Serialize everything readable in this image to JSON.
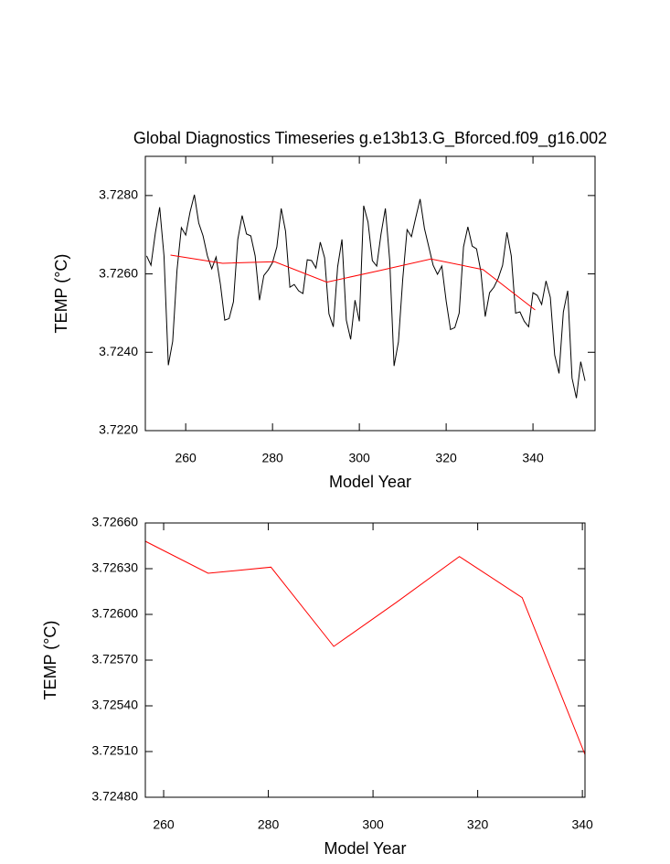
{
  "chart_data": [
    {
      "type": "line",
      "title": "Global Diagnostics Timeseries g.e13b13.G_Bforced.f09_g16.002",
      "ylabel": "TEMP (°C)",
      "xlabel": "Model Year",
      "xlim": [
        250.7,
        354.3
      ],
      "xticks": [
        260,
        280,
        300,
        320,
        340
      ],
      "ylim": [
        3.722,
        3.729
      ],
      "yticks": [
        {
          "value": 3.722,
          "label": "3.7220"
        },
        {
          "value": 3.724,
          "label": "3.7240"
        },
        {
          "value": 3.726,
          "label": "3.7260"
        },
        {
          "value": 3.728,
          "label": "3.7280"
        }
      ],
      "series": [
        {
          "color": "#000000",
          "x": [
            251,
            252,
            253,
            254,
            255,
            256,
            257,
            258,
            259,
            260,
            261,
            262,
            263,
            264,
            265,
            266,
            267,
            268,
            269,
            270,
            271,
            272,
            273,
            274,
            275,
            276,
            277,
            278,
            279,
            280,
            281,
            282,
            283,
            284,
            285,
            286,
            287,
            288,
            289,
            290,
            291,
            292,
            293,
            294,
            295,
            296,
            297,
            298,
            299,
            300,
            301,
            302,
            303,
            304,
            305,
            306,
            307,
            308,
            309,
            310,
            311,
            312,
            313,
            314,
            315,
            316,
            317,
            318,
            319,
            320,
            321,
            322,
            323,
            324,
            325,
            326,
            327,
            328,
            329,
            330,
            331,
            332,
            333,
            334,
            335,
            336,
            337,
            338,
            339,
            340,
            341,
            342,
            343,
            344,
            345,
            346,
            347,
            348,
            349,
            350,
            351,
            352
          ],
          "values": [
            3.72646,
            3.72622,
            3.72704,
            3.7277,
            3.72646,
            3.72367,
            3.72428,
            3.7261,
            3.72718,
            3.72699,
            3.72758,
            3.72802,
            3.7273,
            3.72697,
            3.72646,
            3.72613,
            3.72643,
            3.72573,
            3.72482,
            3.72486,
            3.72529,
            3.72688,
            3.72749,
            3.72702,
            3.72697,
            3.72646,
            3.72533,
            3.72596,
            3.7261,
            3.72629,
            3.72669,
            3.72767,
            3.72709,
            3.72566,
            3.72573,
            3.72557,
            3.7255,
            3.72636,
            3.72634,
            3.72615,
            3.72681,
            3.72641,
            3.72498,
            3.72465,
            3.72618,
            3.72688,
            3.72482,
            3.72433,
            3.72533,
            3.72479,
            3.72774,
            3.72732,
            3.72634,
            3.7262,
            3.72702,
            3.72767,
            3.72634,
            3.72365,
            3.72426,
            3.72587,
            3.72713,
            3.72695,
            3.72744,
            3.72791,
            3.72716,
            3.72669,
            3.72622,
            3.72599,
            3.7262,
            3.72531,
            3.72458,
            3.72463,
            3.725,
            3.72669,
            3.7272,
            3.72671,
            3.72664,
            3.72606,
            3.72491,
            3.72552,
            3.72566,
            3.72589,
            3.72622,
            3.72706,
            3.72646,
            3.725,
            3.72503,
            3.72479,
            3.72465,
            3.72552,
            3.72545,
            3.72522,
            3.72582,
            3.7254,
            3.72393,
            3.72346,
            3.72503,
            3.72557,
            3.72334,
            3.72283,
            3.72376,
            3.72327
          ]
        },
        {
          "color": "#ff0000",
          "x": [
            256.5,
            268.5,
            280.5,
            292.5,
            304.5,
            316.5,
            328.5,
            340.5
          ],
          "values": [
            3.72648,
            3.72627,
            3.72631,
            3.72579,
            3.72608,
            3.72638,
            3.72611,
            3.72508
          ]
        }
      ]
    },
    {
      "type": "line",
      "ylabel": "TEMP (°C)",
      "xlabel": "Model Year",
      "xlim": [
        256.5,
        340.5
      ],
      "xticks": [
        260,
        280,
        300,
        320,
        340
      ],
      "ylim": [
        3.7248,
        3.7266
      ],
      "yticks": [
        {
          "value": 3.7248,
          "label": "3.72480"
        },
        {
          "value": 3.7251,
          "label": "3.72510"
        },
        {
          "value": 3.7254,
          "label": "3.72540"
        },
        {
          "value": 3.7257,
          "label": "3.72570"
        },
        {
          "value": 3.726,
          "label": "3.72600"
        },
        {
          "value": 3.7263,
          "label": "3.72630"
        },
        {
          "value": 3.7266,
          "label": "3.72660"
        }
      ],
      "series": [
        {
          "color": "#ff0000",
          "x": [
            256.5,
            268.5,
            280.5,
            292.5,
            304.5,
            316.5,
            328.5,
            340.5
          ],
          "values": [
            3.72648,
            3.72627,
            3.72631,
            3.72579,
            3.72608,
            3.72638,
            3.72611,
            3.72508
          ]
        }
      ]
    }
  ]
}
